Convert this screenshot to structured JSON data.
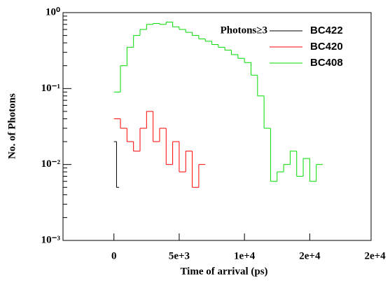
{
  "chart_data": {
    "type": "line",
    "step": true,
    "log_y": true,
    "xlabel": "Time of arrival (ps)",
    "ylabel": "No. of Photons",
    "legend_title": "Photons≥3",
    "legend": "upper right",
    "xlim": [
      -3900,
      19700
    ],
    "xticks": [
      0,
      {
        "value": 5000,
        "label": "5e+3"
      },
      {
        "value": 10000,
        "label": "1e+4"
      },
      {
        "value": 15000,
        "label": "2e+4"
      },
      {
        "value": 20000,
        "label": "2e+4"
      }
    ],
    "ylim": [
      0.001,
      1
    ],
    "yticks": [
      {
        "value": 0.001,
        "label": "10⁻³"
      },
      {
        "value": 0.01,
        "label": "10⁻²"
      },
      {
        "value": 0.1,
        "label": "10⁻¹"
      },
      {
        "value": 1,
        "label": "10⁰"
      }
    ],
    "series": [
      {
        "name": "BC422",
        "color": "#000000",
        "x": [
          0,
          200
        ],
        "values": [
          0.02,
          0.005
        ]
      },
      {
        "name": "BC420",
        "color": "#ff0000",
        "x": [
          0,
          500,
          1000,
          1500,
          2000,
          2500,
          3000,
          3500,
          4000,
          4500,
          5000,
          5500,
          6000,
          6500
        ],
        "values": [
          0.04,
          0.03,
          0.02,
          0.015,
          0.03,
          0.05,
          0.02,
          0.03,
          0.01,
          0.02,
          0.008,
          0.015,
          0.005,
          0.01
        ]
      },
      {
        "name": "BC408",
        "color": "#00dd00",
        "x": [
          0,
          500,
          1000,
          1500,
          2000,
          2500,
          3000,
          3500,
          4000,
          4500,
          5000,
          5500,
          6000,
          6500,
          7000,
          7500,
          8000,
          8500,
          9000,
          9500,
          10000,
          10500,
          11000,
          11500,
          12000,
          12500,
          13000,
          13500,
          14000,
          14500,
          15000,
          15500
        ],
        "values": [
          0.09,
          0.2,
          0.35,
          0.5,
          0.6,
          0.7,
          0.72,
          0.7,
          0.75,
          0.65,
          0.6,
          0.55,
          0.5,
          0.45,
          0.42,
          0.38,
          0.35,
          0.32,
          0.28,
          0.25,
          0.22,
          0.15,
          0.08,
          0.03,
          0.006,
          0.008,
          0.01,
          0.015,
          0.007,
          0.012,
          0.006,
          0.01
        ]
      }
    ]
  }
}
